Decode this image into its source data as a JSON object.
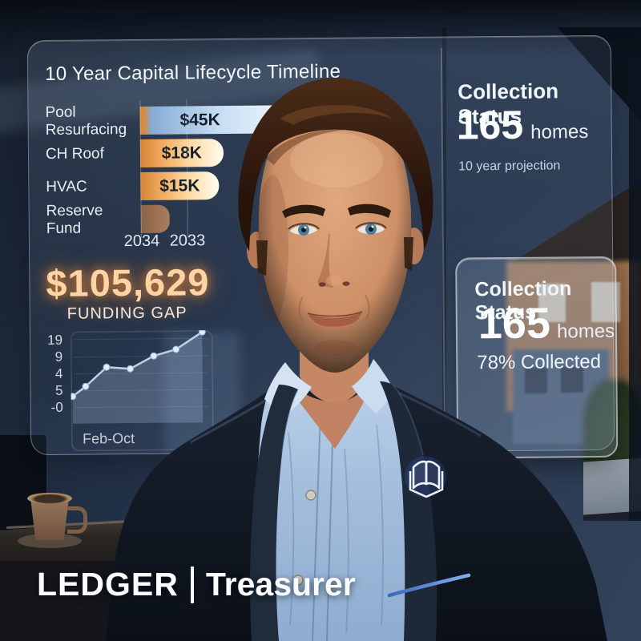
{
  "brand": {
    "name": "LEDGER",
    "separator": "|",
    "role": "Treasurer",
    "logo_icon": "open-book"
  },
  "panels": {
    "timeline": {
      "title": "10 Year Capital Lifecycle Timeline",
      "bars": [
        {
          "label": "Pool Resurfacing",
          "value": "$45K",
          "width_pct": 100,
          "style": "blue"
        },
        {
          "label": "CH Roof",
          "value": "$18K",
          "width_pct": 37,
          "style": "orange"
        },
        {
          "label": "HVAC",
          "value": "$15K",
          "width_pct": 35,
          "style": "orange"
        },
        {
          "label": "Reserve Fund",
          "value": "",
          "width_pct": 13,
          "style": "brown"
        }
      ],
      "x_ticks": [
        "2034",
        "2033"
      ]
    },
    "funding_gap": {
      "amount": "$105,629",
      "label": "FUNDING GAP"
    },
    "trend": {
      "y_ticks": [
        "19",
        "9",
        "4",
        "5",
        "-0"
      ],
      "x_label": "Feb-Oct",
      "points": [
        [
          0,
          30
        ],
        [
          10,
          41
        ],
        [
          26,
          62
        ],
        [
          44,
          60
        ],
        [
          62,
          74
        ],
        [
          79,
          81
        ],
        [
          99,
          100
        ]
      ]
    },
    "collection_projection": {
      "title": "Collection Status",
      "value": "165",
      "unit": "homes",
      "subtitle": "10 year projection"
    },
    "collection_card": {
      "title": "Collection Status",
      "value": "165",
      "unit": "homes",
      "subtitle": "78% Collected"
    }
  },
  "chart_data": [
    {
      "type": "bar",
      "orientation": "horizontal",
      "title": "10 Year Capital Lifecycle Timeline",
      "categories": [
        "Pool Resurfacing",
        "CH Roof",
        "HVAC",
        "Reserve Fund"
      ],
      "values": [
        45,
        18,
        15,
        5
      ],
      "value_labels": [
        "$45K",
        "$18K",
        "$15K",
        ""
      ],
      "x_ticks": [
        "2034",
        "2033"
      ],
      "bar_colors": [
        "blue-gradient",
        "orange-gradient",
        "orange-gradient",
        "brown"
      ]
    },
    {
      "type": "area",
      "x_label": "Feb-Oct",
      "y_ticks": [
        "19",
        "9",
        "4",
        "5",
        "-0"
      ],
      "values_relative": [
        30,
        41,
        62,
        60,
        74,
        81,
        100
      ],
      "note": "rising trend line with 7 markers"
    }
  ],
  "colors": {
    "background": "#24324a",
    "panel_border": "rgba(255,255,255,0.4)",
    "glow_amber": "#ffd3a3",
    "bar_orange": "#f0a85c",
    "bar_blue": "#cfe4f8",
    "accent_blue": "#6f9de8"
  }
}
